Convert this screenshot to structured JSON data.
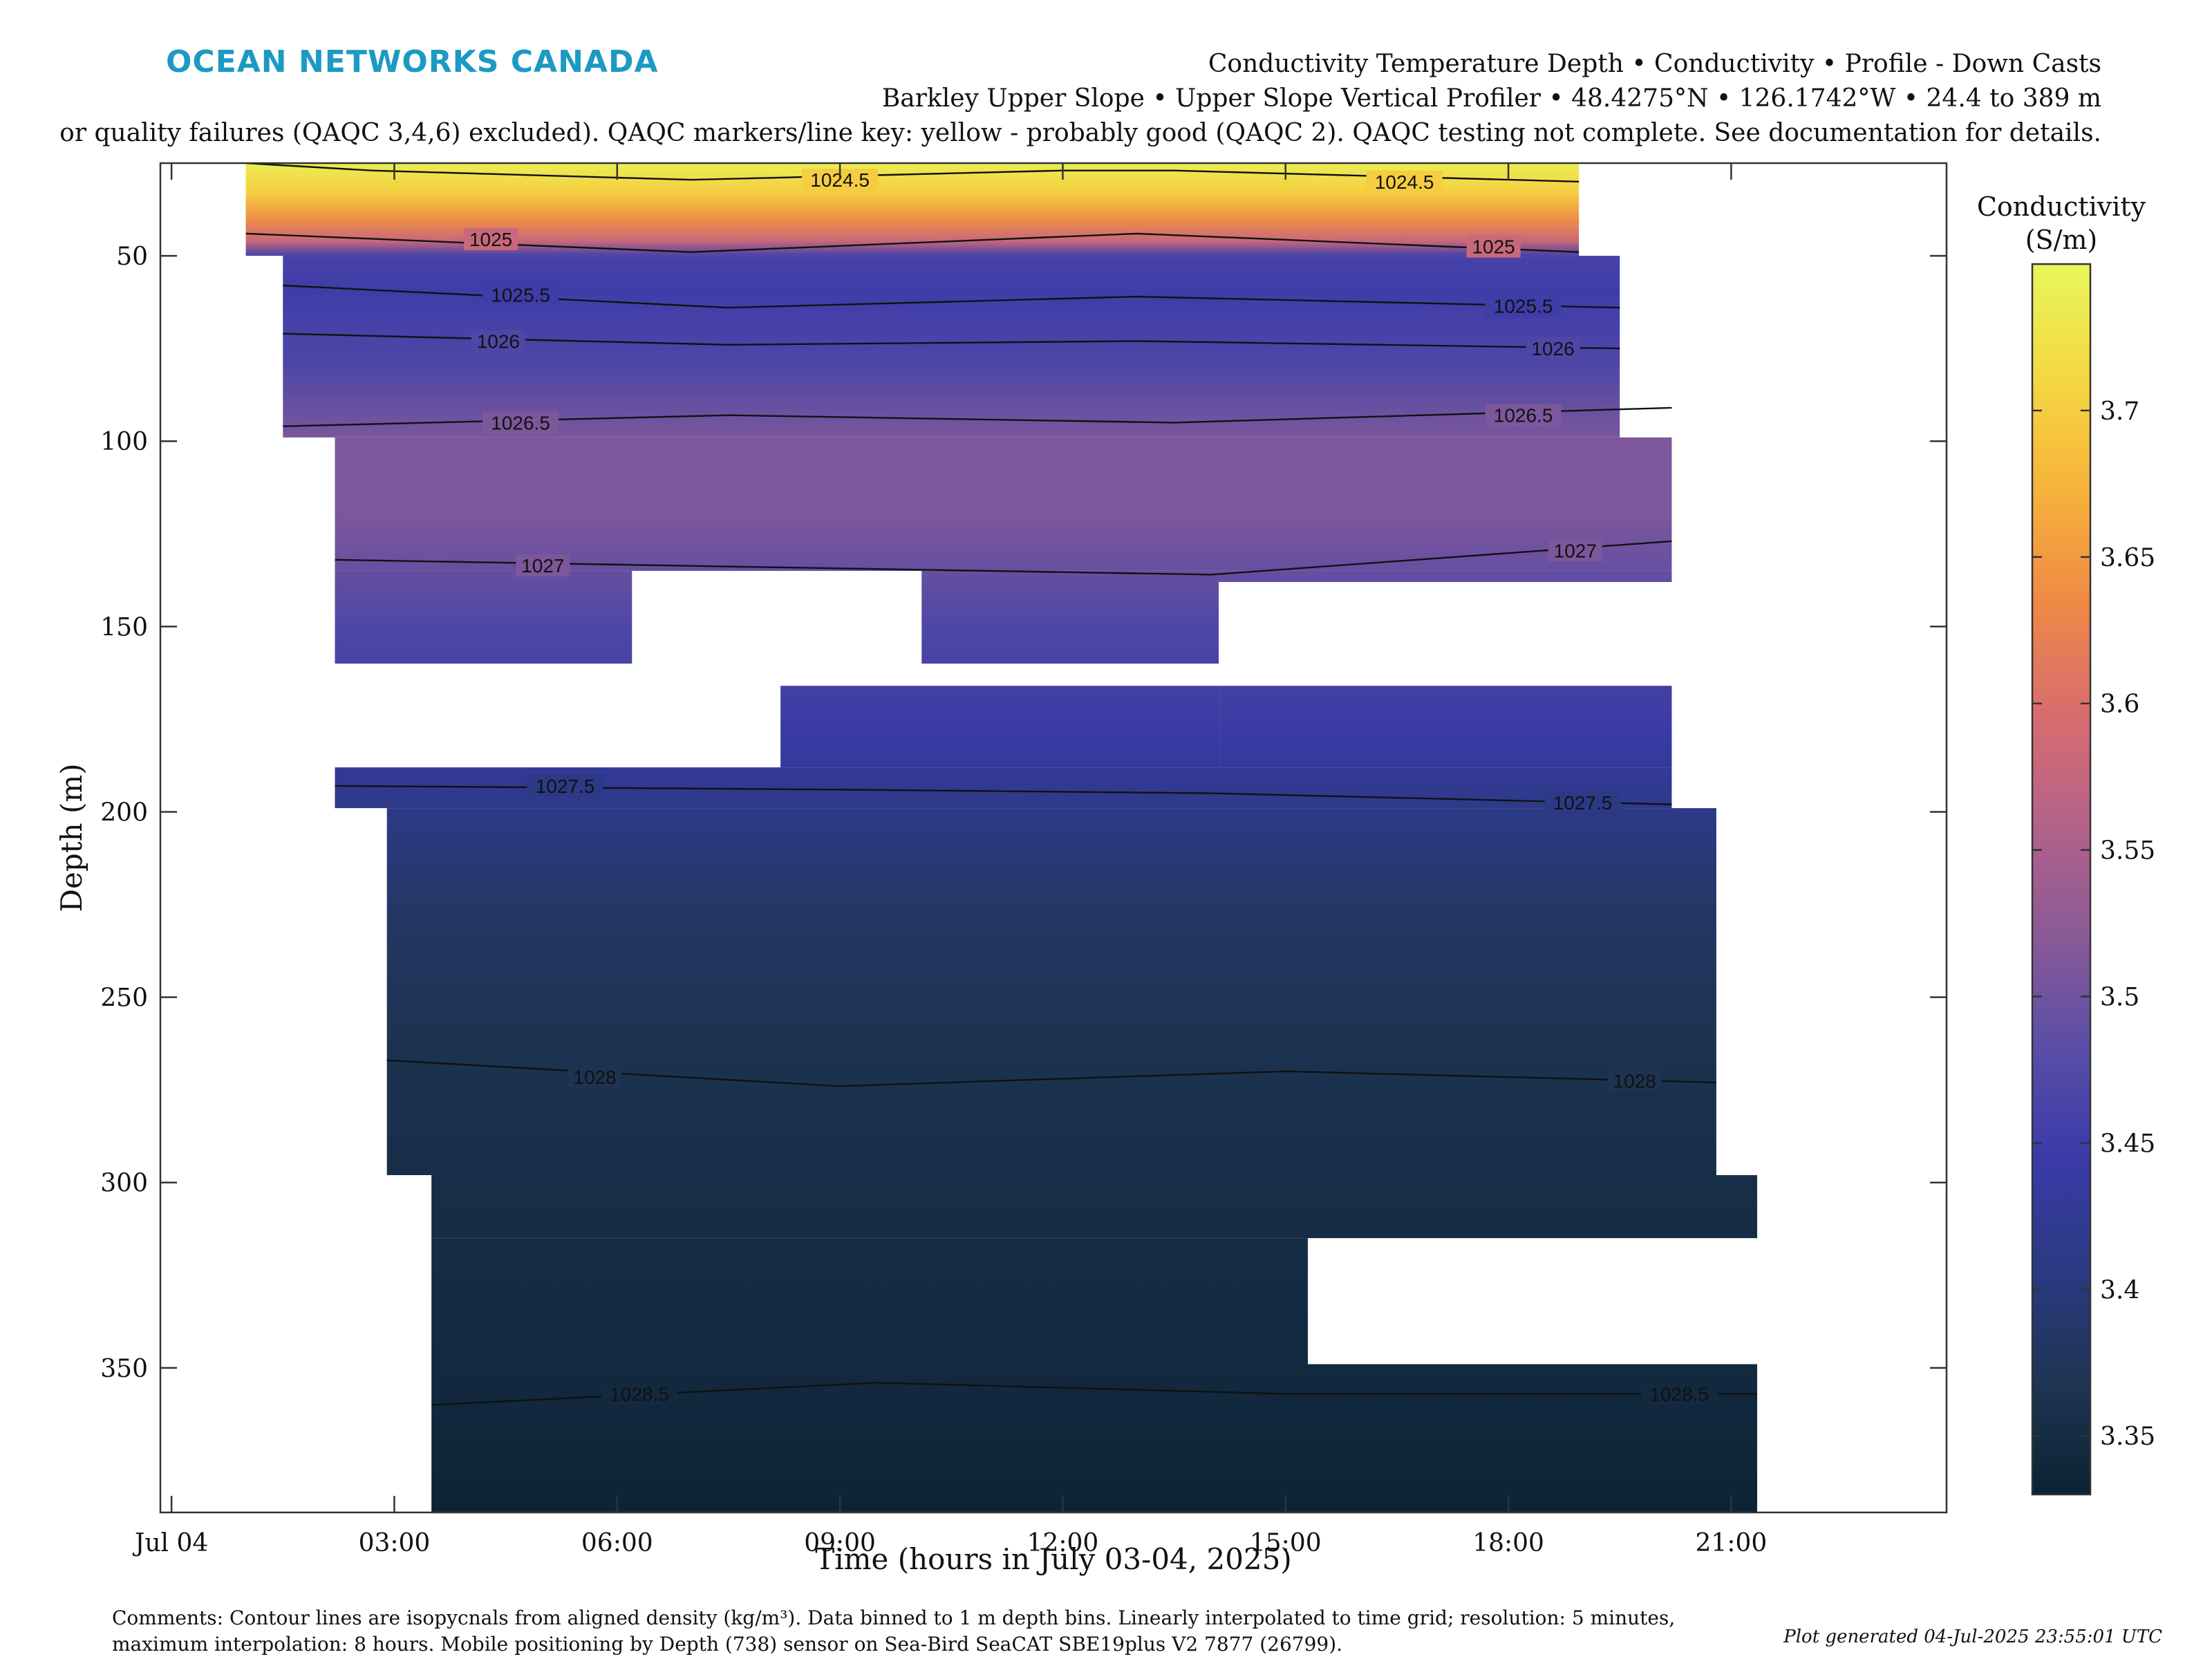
{
  "header": {
    "brand": "OCEAN NETWORKS CANADA",
    "title_line1": "Conductivity Temperature Depth • Conductivity • Profile - Down Casts",
    "title_line2": "Barkley Upper Slope • Upper Slope Vertical Profiler • 48.4275°N • 126.1742°W • 24.4 to 389 m",
    "title_line3": "or quality failures (QAQC 3,4,6) excluded). QAQC markers/line key: yellow - probably good (QAQC 2). QAQC testing not complete. See documentation for details."
  },
  "footer": {
    "comment_line1": "Comments: Contour lines are isopycnals from aligned density (kg/m³). Data binned to 1 m depth bins. Linearly interpolated to time grid; resolution: 5 minutes,",
    "comment_line2": "maximum interpolation: 8 hours. Mobile positioning by Depth (738) sensor on Sea-Bird SeaCAT SBE19plus V2 7877 (26799).",
    "generated": "Plot generated 04-Jul-2025 23:55:01 UTC"
  },
  "chart_data": {
    "type": "heatmap",
    "xlabel": "Time (hours in July 03-04, 2025)",
    "ylabel": "Depth (m)",
    "x_ticks": [
      {
        "t": 0,
        "label": "Jul 04"
      },
      {
        "t": 3,
        "label": "03:00"
      },
      {
        "t": 6,
        "label": "06:00"
      },
      {
        "t": 9,
        "label": "09:00"
      },
      {
        "t": 12,
        "label": "12:00"
      },
      {
        "t": 15,
        "label": "15:00"
      },
      {
        "t": 18,
        "label": "18:00"
      },
      {
        "t": 21,
        "label": "21:00"
      }
    ],
    "y_ticks": [
      50,
      100,
      150,
      200,
      250,
      300,
      350
    ],
    "xlim": [
      -0.15,
      23.9
    ],
    "ylim": [
      25,
      389
    ],
    "y_reversed": true,
    "colorbar": {
      "label_line1": "Conductivity",
      "label_line2": "(S/m)",
      "range": [
        3.33,
        3.75
      ],
      "ticks": [
        3.35,
        3.4,
        3.45,
        3.5,
        3.55,
        3.6,
        3.65,
        3.7
      ],
      "colors": [
        "#0b2233",
        "#1e3554",
        "#2a3a82",
        "#3a3aa8",
        "#5a4ea7",
        "#8a5a96",
        "#b4628a",
        "#d96d6d",
        "#ef8a45",
        "#f6b43a",
        "#f5d844",
        "#e8f75a"
      ]
    },
    "data_extent": [
      {
        "t0": 1.0,
        "t1": 18.95,
        "d0": 25,
        "d1": 50
      },
      {
        "t0": 1.5,
        "t1": 19.5,
        "d0": 50,
        "d1": 99
      },
      {
        "t0": 2.2,
        "t1": 20.2,
        "d0": 99,
        "d1": 135
      },
      {
        "t0": 2.2,
        "t1": 6.2,
        "d0": 135,
        "d1": 160
      },
      {
        "t0": 10.1,
        "t1": 14.1,
        "d0": 135,
        "d1": 160
      },
      {
        "t0": 14.1,
        "t1": 20.2,
        "d0": 135,
        "d1": 138
      },
      {
        "t0": 8.2,
        "t1": 14.1,
        "d0": 166,
        "d1": 188
      },
      {
        "t0": 14.1,
        "t1": 20.2,
        "d0": 166,
        "d1": 188
      },
      {
        "t0": 2.2,
        "t1": 20.2,
        "d0": 188,
        "d1": 199
      },
      {
        "t0": 2.9,
        "t1": 20.8,
        "d0": 199,
        "d1": 298
      },
      {
        "t0": 3.5,
        "t1": 21.35,
        "d0": 298,
        "d1": 315
      },
      {
        "t0": 3.5,
        "t1": 15.3,
        "d0": 315,
        "d1": 349
      },
      {
        "t0": 3.5,
        "t1": 21.35,
        "d0": 349,
        "d1": 389
      }
    ],
    "profile": [
      {
        "d": 25,
        "c": 3.74
      },
      {
        "d": 33,
        "c": 3.7
      },
      {
        "d": 40,
        "c": 3.64
      },
      {
        "d": 46,
        "c": 3.58
      },
      {
        "d": 50,
        "c": 3.46
      },
      {
        "d": 60,
        "c": 3.45
      },
      {
        "d": 80,
        "c": 3.47
      },
      {
        "d": 100,
        "c": 3.51
      },
      {
        "d": 120,
        "c": 3.51
      },
      {
        "d": 150,
        "c": 3.47
      },
      {
        "d": 180,
        "c": 3.44
      },
      {
        "d": 200,
        "c": 3.41
      },
      {
        "d": 230,
        "c": 3.38
      },
      {
        "d": 260,
        "c": 3.365
      },
      {
        "d": 300,
        "c": 3.355
      },
      {
        "d": 350,
        "c": 3.345
      },
      {
        "d": 389,
        "c": 3.335
      }
    ],
    "isopycnals": [
      {
        "label": "1024.5",
        "points": [
          [
            1.0,
            25
          ],
          [
            2.7,
            27
          ],
          [
            7.0,
            29.5
          ],
          [
            12.0,
            27
          ],
          [
            13.5,
            27
          ],
          [
            18.95,
            30
          ]
        ],
        "label_at": [
          [
            9.0,
            29.5
          ],
          [
            16.6,
            30
          ]
        ]
      },
      {
        "label": "1025",
        "points": [
          [
            1.0,
            44
          ],
          [
            7.0,
            49
          ],
          [
            13.0,
            44
          ],
          [
            18.95,
            49
          ]
        ],
        "label_at": [
          [
            4.3,
            45.5
          ],
          [
            17.8,
            47.5
          ]
        ]
      },
      {
        "label": "1025.5",
        "points": [
          [
            1.5,
            58
          ],
          [
            7.5,
            64
          ],
          [
            13.0,
            61
          ],
          [
            19.5,
            64
          ]
        ],
        "label_at": [
          [
            4.7,
            60.5
          ],
          [
            18.2,
            63.5
          ]
        ]
      },
      {
        "label": "1026",
        "points": [
          [
            1.5,
            71
          ],
          [
            7.5,
            74
          ],
          [
            13.0,
            73
          ],
          [
            19.5,
            75
          ]
        ],
        "label_at": [
          [
            4.4,
            73
          ],
          [
            18.6,
            75
          ]
        ]
      },
      {
        "label": "1026.5",
        "points": [
          [
            1.5,
            96
          ],
          [
            7.5,
            93
          ],
          [
            13.5,
            95
          ],
          [
            20.2,
            91
          ]
        ],
        "label_at": [
          [
            4.7,
            95
          ],
          [
            18.2,
            93
          ]
        ]
      },
      {
        "label": "1027",
        "points": [
          [
            2.2,
            132
          ],
          [
            8.0,
            134
          ],
          [
            14.0,
            136
          ],
          [
            20.2,
            127
          ]
        ],
        "label_at": [
          [
            5.0,
            133.5
          ],
          [
            18.9,
            129.5
          ]
        ]
      },
      {
        "label": "1027.5",
        "points": [
          [
            2.2,
            193
          ],
          [
            9.0,
            194
          ],
          [
            14.0,
            195
          ],
          [
            20.2,
            198
          ]
        ],
        "label_at": [
          [
            5.3,
            193
          ],
          [
            19.0,
            197.5
          ]
        ]
      },
      {
        "label": "1028",
        "points": [
          [
            2.9,
            267
          ],
          [
            9.0,
            274
          ],
          [
            15.0,
            270
          ],
          [
            20.8,
            273
          ]
        ],
        "label_at": [
          [
            5.7,
            271.5
          ],
          [
            19.7,
            272.5
          ]
        ]
      },
      {
        "label": "1028.5",
        "points": [
          [
            3.5,
            360
          ],
          [
            9.5,
            354
          ],
          [
            15.0,
            357
          ],
          [
            21.35,
            357
          ]
        ],
        "label_at": [
          [
            6.3,
            357
          ],
          [
            20.3,
            357
          ]
        ]
      }
    ]
  }
}
